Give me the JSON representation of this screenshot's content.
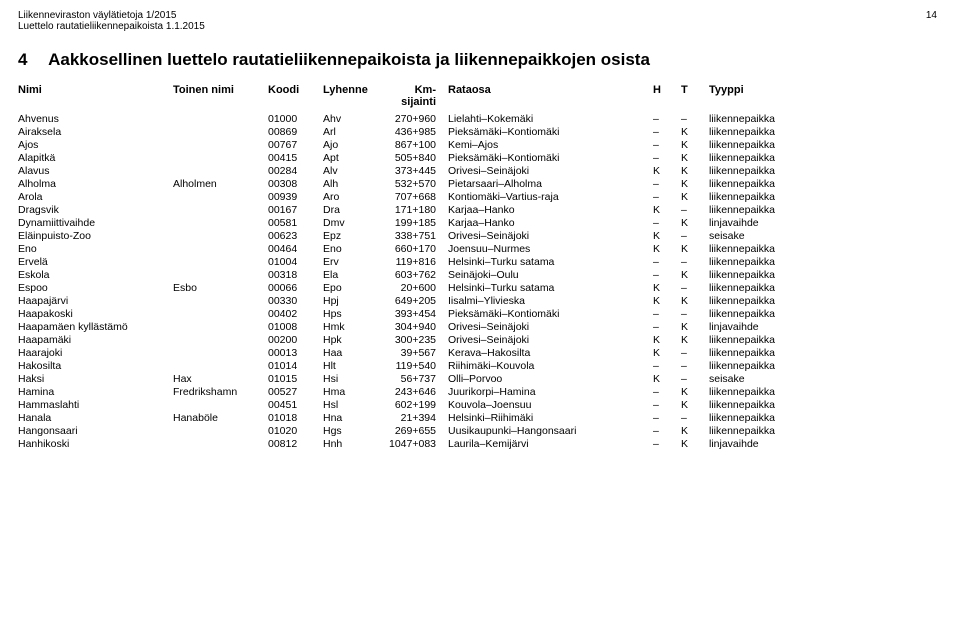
{
  "header": {
    "line1": "Liikenneviraston väylätietoja 1/2015",
    "line2": "Luettelo rautatieliikennepaikoista 1.1.2015",
    "pageNumber": "14"
  },
  "section": {
    "number": "4",
    "title": "Aakkosellinen luettelo rautatieliikennepaikoista ja liikennepaikkojen osista"
  },
  "columns": {
    "nimi": "Nimi",
    "toinen": "Toinen nimi",
    "koodi": "Koodi",
    "lyhenne": "Lyhenne",
    "km": "Km-\nsijainti",
    "rataosa": "Rataosa",
    "h": "H",
    "t": "T",
    "tyyppi": "Tyyppi"
  },
  "rows": [
    {
      "nimi": "Ahvenus",
      "toinen": "",
      "koodi": "01000",
      "lyh": "Ahv",
      "km": "270+960",
      "rata": "Lielahti–Kokemäki",
      "h": "–",
      "t": "–",
      "tyyppi": "liikennepaikka"
    },
    {
      "nimi": "Airaksela",
      "toinen": "",
      "koodi": "00869",
      "lyh": "Arl",
      "km": "436+985",
      "rata": "Pieksämäki–Kontiomäki",
      "h": "–",
      "t": "K",
      "tyyppi": "liikennepaikka"
    },
    {
      "nimi": "Ajos",
      "toinen": "",
      "koodi": "00767",
      "lyh": "Ajo",
      "km": "867+100",
      "rata": "Kemi–Ajos",
      "h": "–",
      "t": "K",
      "tyyppi": "liikennepaikka"
    },
    {
      "nimi": "Alapitkä",
      "toinen": "",
      "koodi": "00415",
      "lyh": "Apt",
      "km": "505+840",
      "rata": "Pieksämäki–Kontiomäki",
      "h": "–",
      "t": "K",
      "tyyppi": "liikennepaikka"
    },
    {
      "nimi": "Alavus",
      "toinen": "",
      "koodi": "00284",
      "lyh": "Alv",
      "km": "373+445",
      "rata": "Orivesi–Seinäjoki",
      "h": "K",
      "t": "K",
      "tyyppi": "liikennepaikka"
    },
    {
      "nimi": "Alholma",
      "toinen": "Alholmen",
      "koodi": "00308",
      "lyh": "Alh",
      "km": "532+570",
      "rata": "Pietarsaari–Alholma",
      "h": "–",
      "t": "K",
      "tyyppi": "liikennepaikka"
    },
    {
      "nimi": "Arola",
      "toinen": "",
      "koodi": "00939",
      "lyh": "Aro",
      "km": "707+668",
      "rata": "Kontiomäki–Vartius-raja",
      "h": "–",
      "t": "K",
      "tyyppi": "liikennepaikka"
    },
    {
      "nimi": "Dragsvik",
      "toinen": "",
      "koodi": "00167",
      "lyh": "Dra",
      "km": "171+180",
      "rata": "Karjaa–Hanko",
      "h": "K",
      "t": "–",
      "tyyppi": "liikennepaikka"
    },
    {
      "nimi": "Dynamiittivaihde",
      "toinen": "",
      "koodi": "00581",
      "lyh": "Dmv",
      "km": "199+185",
      "rata": "Karjaa–Hanko",
      "h": "–",
      "t": "K",
      "tyyppi": "linjavaihde"
    },
    {
      "nimi": "Eläinpuisto-Zoo",
      "toinen": "",
      "koodi": "00623",
      "lyh": "Epz",
      "km": "338+751",
      "rata": "Orivesi–Seinäjoki",
      "h": "K",
      "t": "–",
      "tyyppi": "seisake"
    },
    {
      "nimi": "Eno",
      "toinen": "",
      "koodi": "00464",
      "lyh": "Eno",
      "km": "660+170",
      "rata": "Joensuu–Nurmes",
      "h": "K",
      "t": "K",
      "tyyppi": "liikennepaikka"
    },
    {
      "nimi": "Ervelä",
      "toinen": "",
      "koodi": "01004",
      "lyh": "Erv",
      "km": "119+816",
      "rata": "Helsinki–Turku satama",
      "h": "–",
      "t": "–",
      "tyyppi": "liikennepaikka"
    },
    {
      "nimi": "Eskola",
      "toinen": "",
      "koodi": "00318",
      "lyh": "Ela",
      "km": "603+762",
      "rata": "Seinäjoki–Oulu",
      "h": "–",
      "t": "K",
      "tyyppi": "liikennepaikka"
    },
    {
      "nimi": "Espoo",
      "toinen": "Esbo",
      "koodi": "00066",
      "lyh": "Epo",
      "km": "20+600",
      "rata": "Helsinki–Turku satama",
      "h": "K",
      "t": "–",
      "tyyppi": "liikennepaikka"
    },
    {
      "nimi": "Haapajärvi",
      "toinen": "",
      "koodi": "00330",
      "lyh": "Hpj",
      "km": "649+205",
      "rata": "Iisalmi–Ylivieska",
      "h": "K",
      "t": "K",
      "tyyppi": "liikennepaikka"
    },
    {
      "nimi": "Haapakoski",
      "toinen": "",
      "koodi": "00402",
      "lyh": "Hps",
      "km": "393+454",
      "rata": "Pieksämäki–Kontiomäki",
      "h": "–",
      "t": "–",
      "tyyppi": "liikennepaikka"
    },
    {
      "nimi": "Haapamäen kyllästämö",
      "toinen": "",
      "koodi": "01008",
      "lyh": "Hmk",
      "km": "304+940",
      "rata": "Orivesi–Seinäjoki",
      "h": "–",
      "t": "K",
      "tyyppi": "linjavaihde"
    },
    {
      "nimi": "Haapamäki",
      "toinen": "",
      "koodi": "00200",
      "lyh": "Hpk",
      "km": "300+235",
      "rata": "Orivesi–Seinäjoki",
      "h": "K",
      "t": "K",
      "tyyppi": "liikennepaikka"
    },
    {
      "nimi": "Haarajoki",
      "toinen": "",
      "koodi": "00013",
      "lyh": "Haa",
      "km": "39+567",
      "rata": "Kerava–Hakosilta",
      "h": "K",
      "t": "–",
      "tyyppi": "liikennepaikka"
    },
    {
      "nimi": "Hakosilta",
      "toinen": "",
      "koodi": "01014",
      "lyh": "Hlt",
      "km": "119+540",
      "rata": "Riihimäki–Kouvola",
      "h": "–",
      "t": "–",
      "tyyppi": "liikennepaikka"
    },
    {
      "nimi": "Haksi",
      "toinen": "Hax",
      "koodi": "01015",
      "lyh": "Hsi",
      "km": "56+737",
      "rata": "Olli–Porvoo",
      "h": "K",
      "t": "–",
      "tyyppi": "seisake"
    },
    {
      "nimi": "Hamina",
      "toinen": "Fredrikshamn",
      "koodi": "00527",
      "lyh": "Hma",
      "km": "243+646",
      "rata": "Juurikorpi–Hamina",
      "h": "–",
      "t": "K",
      "tyyppi": "liikennepaikka"
    },
    {
      "nimi": "Hammaslahti",
      "toinen": "",
      "koodi": "00451",
      "lyh": "Hsl",
      "km": "602+199",
      "rata": "Kouvola–Joensuu",
      "h": "–",
      "t": "K",
      "tyyppi": "liikennepaikka"
    },
    {
      "nimi": "Hanala",
      "toinen": "Hanaböle",
      "koodi": "01018",
      "lyh": "Hna",
      "km": "21+394",
      "rata": "Helsinki–Riihimäki",
      "h": "–",
      "t": "–",
      "tyyppi": "liikennepaikka"
    },
    {
      "nimi": "Hangonsaari",
      "toinen": "",
      "koodi": "01020",
      "lyh": "Hgs",
      "km": "269+655",
      "rata": "Uusikaupunki–Hangonsaari",
      "h": "–",
      "t": "K",
      "tyyppi": "liikennepaikka"
    },
    {
      "nimi": "Hanhikoski",
      "toinen": "",
      "koodi": "00812",
      "lyh": "Hnh",
      "km": "1047+083",
      "rata": "Laurila–Kemijärvi",
      "h": "–",
      "t": "K",
      "tyyppi": "linjavaihde"
    }
  ]
}
